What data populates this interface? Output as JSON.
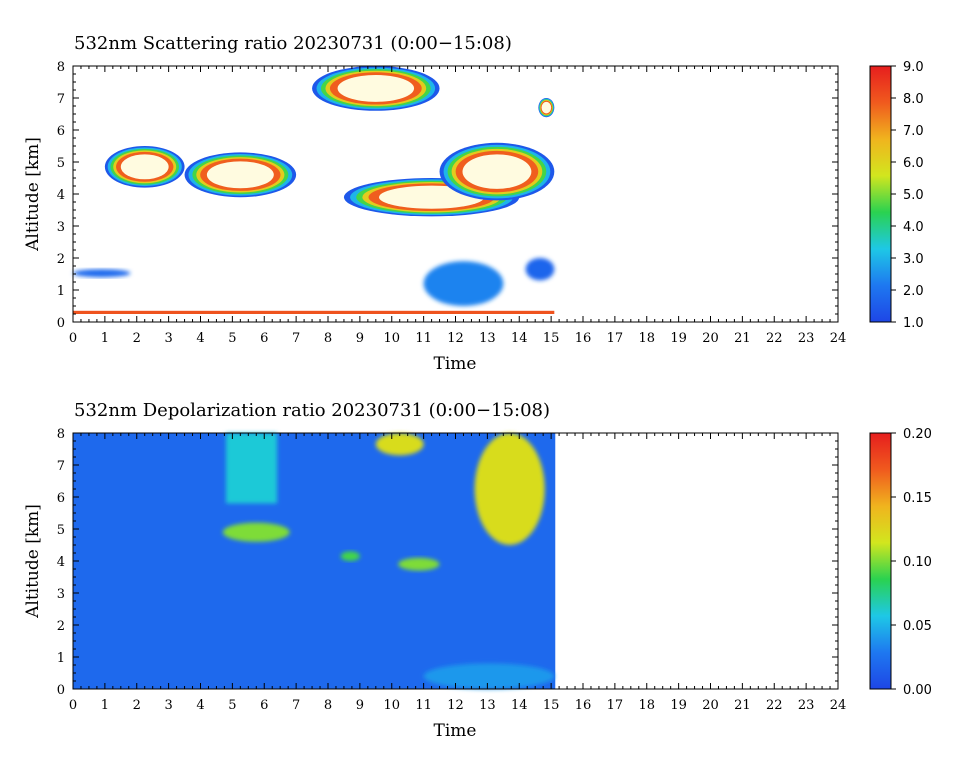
{
  "colors": {
    "colorbar_stops": [
      "#1e46e6",
      "#1e78f0",
      "#1ec8e6",
      "#2ad250",
      "#d2e61e",
      "#f0b41e",
      "#f05a1e",
      "#e61e1e"
    ],
    "data_background": "#ffffff",
    "cloud_interior": "#fffbe0"
  },
  "chart_data": [
    {
      "type": "heatmap",
      "title": "532nm Scattering ratio  20230731 (0:00−15:08)",
      "xlabel": "Time",
      "ylabel": "Altitude [km]",
      "xlim": [
        0,
        24
      ],
      "ylim": [
        0,
        8
      ],
      "x_ticks": [
        "0",
        "1",
        "2",
        "3",
        "4",
        "5",
        "6",
        "7",
        "8",
        "9",
        "10",
        "11",
        "12",
        "13",
        "14",
        "15",
        "16",
        "17",
        "18",
        "19",
        "20",
        "21",
        "22",
        "23",
        "24"
      ],
      "y_ticks": [
        "0",
        "1",
        "2",
        "3",
        "4",
        "5",
        "6",
        "7",
        "8"
      ],
      "data_extent_time": [
        0,
        15.13
      ],
      "colorbar": {
        "min": 1.0,
        "max": 9.0,
        "ticks": [
          "1.0",
          "2.0",
          "3.0",
          "4.0",
          "5.0",
          "6.0",
          "7.0",
          "8.0",
          "9.0"
        ]
      },
      "features": [
        {
          "kind": "cloud",
          "time": [
            1.0,
            3.5
          ],
          "altitude": [
            4.2,
            5.5
          ],
          "value": 9.0
        },
        {
          "kind": "cloud",
          "time": [
            3.5,
            7.0
          ],
          "altitude": [
            3.9,
            5.3
          ],
          "value": 9.0
        },
        {
          "kind": "cloud",
          "time": [
            7.5,
            11.5
          ],
          "altitude": [
            6.6,
            8.0
          ],
          "value": 9.0
        },
        {
          "kind": "cloud",
          "time": [
            8.5,
            14.0
          ],
          "altitude": [
            3.3,
            4.5
          ],
          "value": 9.0
        },
        {
          "kind": "cloud",
          "time": [
            11.5,
            15.1
          ],
          "altitude": [
            3.8,
            5.6
          ],
          "value": 9.0
        },
        {
          "kind": "cloud",
          "time": [
            14.6,
            15.1
          ],
          "altitude": [
            6.4,
            7.0
          ],
          "value": 9.0
        },
        {
          "kind": "aerosol",
          "time": [
            0.0,
            1.8
          ],
          "altitude": [
            1.4,
            1.65
          ],
          "value": 1.8
        },
        {
          "kind": "aerosol",
          "time": [
            11.0,
            13.5
          ],
          "altitude": [
            0.5,
            1.9
          ],
          "value": 2.3
        },
        {
          "kind": "aerosol",
          "time": [
            14.2,
            15.1
          ],
          "altitude": [
            1.3,
            2.0
          ],
          "value": 1.7
        },
        {
          "kind": "near-surface",
          "time": [
            0.0,
            15.1
          ],
          "altitude": [
            0.25,
            0.35
          ],
          "value": 8.0
        }
      ]
    },
    {
      "type": "heatmap",
      "title": "532nm Depolarization ratio  20230731 (0:00−15:08)",
      "xlabel": "Time",
      "ylabel": "Altitude [km]",
      "xlim": [
        0,
        24
      ],
      "ylim": [
        0,
        8
      ],
      "x_ticks": [
        "0",
        "1",
        "2",
        "3",
        "4",
        "5",
        "6",
        "7",
        "8",
        "9",
        "10",
        "11",
        "12",
        "13",
        "14",
        "15",
        "16",
        "17",
        "18",
        "19",
        "20",
        "21",
        "22",
        "23",
        "24"
      ],
      "y_ticks": [
        "0",
        "1",
        "2",
        "3",
        "4",
        "5",
        "6",
        "7",
        "8"
      ],
      "data_extent_time": [
        0,
        15.13
      ],
      "colorbar": {
        "min": 0.0,
        "max": 0.2,
        "ticks": [
          "0.00",
          "0.05",
          "0.10",
          "0.15",
          "0.20"
        ]
      },
      "background_value": 0.02,
      "features": [
        {
          "kind": "column",
          "time": [
            4.8,
            6.4
          ],
          "altitude": [
            5.8,
            8.0
          ],
          "value": 0.06
        },
        {
          "kind": "patch",
          "time": [
            4.7,
            6.8
          ],
          "altitude": [
            4.6,
            5.2
          ],
          "value": 0.1
        },
        {
          "kind": "patch",
          "time": [
            9.5,
            11.0
          ],
          "altitude": [
            7.3,
            8.0
          ],
          "value": 0.12
        },
        {
          "kind": "patch",
          "time": [
            12.6,
            14.8
          ],
          "altitude": [
            4.5,
            8.0
          ],
          "value": 0.12
        },
        {
          "kind": "patch",
          "time": [
            10.2,
            11.5
          ],
          "altitude": [
            3.7,
            4.1
          ],
          "value": 0.1
        },
        {
          "kind": "patch",
          "time": [
            8.4,
            9.0
          ],
          "altitude": [
            4.0,
            4.3
          ],
          "value": 0.09
        },
        {
          "kind": "patch",
          "time": [
            11.0,
            15.1
          ],
          "altitude": [
            0.0,
            0.8
          ],
          "value": 0.04
        }
      ]
    }
  ]
}
